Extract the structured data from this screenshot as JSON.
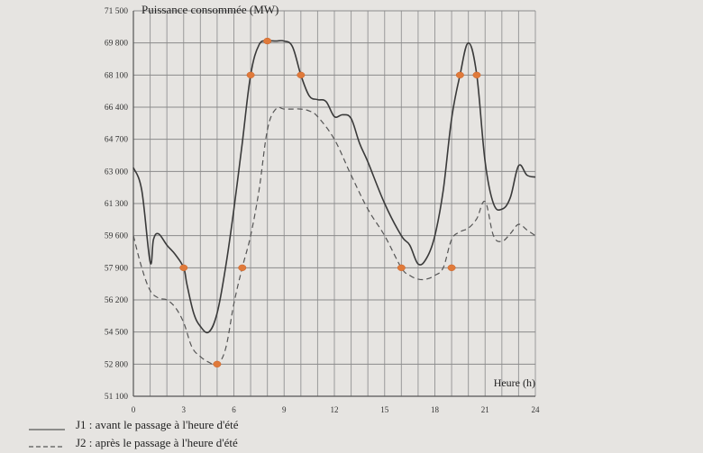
{
  "chart_data": {
    "type": "line",
    "ylabel": "Puissance consommée (MW)",
    "xlabel": "Heure (h)",
    "xlim": [
      0,
      24
    ],
    "ylim": [
      51100,
      71500
    ],
    "x_ticks": [
      0,
      3,
      6,
      9,
      12,
      15,
      18,
      21,
      24
    ],
    "y_ticks": [
      51100,
      52800,
      54500,
      56200,
      57900,
      59600,
      61300,
      63000,
      64700,
      66400,
      68100,
      69800,
      71500
    ],
    "x_tick_labels": [
      "0",
      "3",
      "6",
      "9",
      "12",
      "15",
      "18",
      "21",
      "24"
    ],
    "y_tick_labels": [
      "51 100",
      "52 800",
      "54 500",
      "56 200",
      "57 900",
      "59 600",
      "61 300",
      "63 000",
      "64 700",
      "66 400",
      "68 100",
      "69 800",
      "71 500"
    ],
    "grid": true,
    "series": [
      {
        "name": "J1 : avant le passage à l'heure d'été",
        "style": "solid",
        "x": [
          0,
          0.5,
          1,
          1.2,
          1.5,
          2,
          2.5,
          3,
          3.2,
          3.6,
          4,
          4.5,
          5,
          5.5,
          6,
          6.5,
          7,
          7.5,
          8,
          8.5,
          9,
          9.5,
          10,
          10.5,
          11,
          11.5,
          12,
          12.5,
          13,
          13.5,
          14,
          15,
          16,
          16.5,
          17,
          17.5,
          18,
          18.5,
          19,
          19.5,
          20,
          20.5,
          21,
          21.5,
          22,
          22.5,
          23,
          23.5,
          24
        ],
        "values": [
          63200,
          62000,
          58200,
          59400,
          59700,
          59100,
          58600,
          57900,
          57000,
          55500,
          54800,
          54500,
          55500,
          57900,
          61000,
          64500,
          68100,
          69700,
          69900,
          69900,
          69900,
          69600,
          68100,
          67000,
          66800,
          66700,
          65900,
          66000,
          65800,
          64500,
          63500,
          61300,
          59600,
          59100,
          58100,
          58400,
          59600,
          62000,
          65800,
          68100,
          69800,
          68100,
          63500,
          61300,
          61000,
          61600,
          63300,
          62800,
          62700
        ]
      },
      {
        "name": "J2 : après le passage à l'heure d'été",
        "style": "dashed",
        "x": [
          0,
          0.5,
          1,
          1.5,
          2,
          2.5,
          3,
          3.5,
          4,
          4.5,
          5,
          5.5,
          6,
          6.5,
          7,
          7.5,
          8,
          8.5,
          9,
          9.5,
          10,
          10.5,
          11,
          12,
          13,
          14,
          15,
          16,
          16.5,
          17,
          17.5,
          18,
          18.5,
          19,
          19.5,
          20,
          20.5,
          21,
          21.5,
          22,
          22.5,
          23,
          23.5,
          24
        ],
        "values": [
          59600,
          57900,
          56700,
          56300,
          56200,
          55800,
          55000,
          53700,
          53200,
          52900,
          52800,
          53600,
          56000,
          57900,
          59600,
          62000,
          65200,
          66300,
          66300,
          66300,
          66300,
          66200,
          65900,
          64700,
          62800,
          61000,
          59600,
          57900,
          57500,
          57300,
          57300,
          57500,
          57900,
          59400,
          59800,
          60000,
          60500,
          61400,
          59600,
          59300,
          59700,
          60200,
          59900,
          59600
        ]
      }
    ],
    "highlighted_points": [
      {
        "x": 3,
        "y": 57900
      },
      {
        "x": 6.5,
        "y": 57900
      },
      {
        "x": 7,
        "y": 68100
      },
      {
        "x": 8,
        "y": 69900
      },
      {
        "x": 10,
        "y": 68100
      },
      {
        "x": 5,
        "y": 52800
      },
      {
        "x": 16,
        "y": 57900
      },
      {
        "x": 19,
        "y": 57900
      },
      {
        "x": 19.5,
        "y": 68100
      },
      {
        "x": 20.5,
        "y": 68100
      }
    ],
    "colors": {
      "highlight": "#e07a3a",
      "line": "#3a3a3a",
      "background": "#e6e4e1"
    },
    "legend": {
      "placement": "bottom-left",
      "entries": [
        {
          "label": "J1 : avant le passage à l'heure d'été",
          "style": "solid"
        },
        {
          "label": "J2 : après le passage à l'heure d'été",
          "style": "dashed"
        }
      ]
    }
  }
}
